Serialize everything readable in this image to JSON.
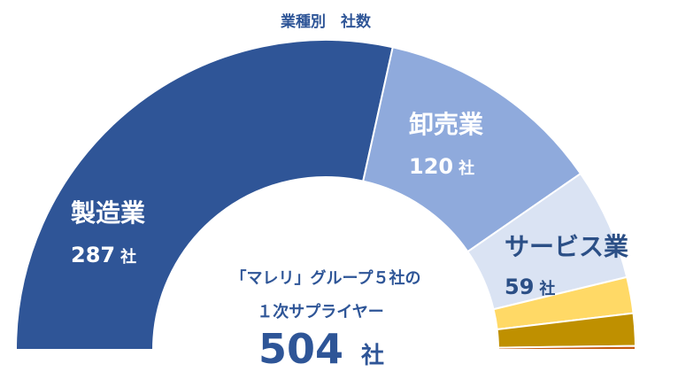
{
  "chart_data": {
    "type": "pie",
    "subtype": "half-donut",
    "title": "業種別　社数",
    "slices": [
      {
        "name": "製造業",
        "value": 287,
        "unit": "社",
        "color": "#2F5597"
      },
      {
        "name": "卸売業",
        "value": 120,
        "unit": "社",
        "color": "#8FAADC"
      },
      {
        "name": "サービス業",
        "value": 59,
        "unit": "社",
        "color": "#DAE3F3"
      },
      {
        "name": "",
        "value": 19,
        "unit": "",
        "color": "#FFD966"
      },
      {
        "name": "",
        "value": 17,
        "unit": "",
        "color": "#BF9000"
      },
      {
        "name": "",
        "value": 2,
        "unit": "",
        "color": "#C55A11"
      }
    ],
    "center": {
      "line1": "「マレリ」グループ５社の",
      "line2": "１次サプライヤー",
      "total": "504",
      "unit": "社"
    }
  }
}
